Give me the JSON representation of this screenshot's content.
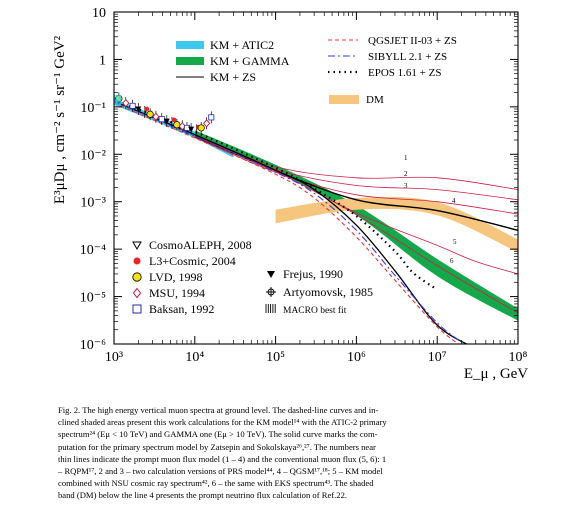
{
  "chart_data": {
    "type": "line",
    "title": "",
    "xlabel": "E_μ , GeV",
    "ylabel": "E³μDμ ,  cm⁻² s⁻¹ sr⁻¹ GeV²",
    "xscale": "log",
    "yscale": "log",
    "xlim": [
      1000,
      100000000
    ],
    "ylim": [
      1e-06,
      10
    ],
    "x_ticks": [
      "10³",
      "10⁴",
      "10⁵",
      "10⁶",
      "10⁷",
      "10⁸"
    ],
    "y_ticks": [
      "10",
      "1",
      "10⁻¹",
      "10⁻²",
      "10⁻³",
      "10⁻⁴",
      "10⁻⁵",
      "10⁻⁶"
    ],
    "legend_right": [
      "QGSJET II-03 + ZS",
      "SIBYLL 2.1 + ZS",
      "EPOS 1.61 + ZS",
      "DM"
    ],
    "legend_left": [
      "KM + ATIC2",
      "KM + GAMMA",
      "KM + ZS"
    ],
    "legend_data": [
      "CosmoALEPH, 2008",
      "L3+Cosmic, 2004",
      "LVD, 1998",
      "MSU, 1994",
      "Baksan, 1992",
      "Frejus, 1990",
      "Artyomovsk, 1985",
      "MACRO best fit"
    ],
    "line_labels": [
      "1",
      "2",
      "3",
      "4",
      "5",
      "6"
    ],
    "colors": {
      "atic_band": "#3ec8f0",
      "gamma_band": "#15a84a",
      "dm_band": "#f6c57e",
      "qgsjet": "#e03a3a",
      "sibyll": "#3a3ad8",
      "km_zs": "#000000",
      "prompt": "#cc1f4a"
    },
    "series": [
      {
        "name": "KM + ATIC2",
        "kind": "band",
        "x": [
          1000,
          3000,
          10000,
          30000
        ],
        "y_low": [
          0.11,
          0.052,
          0.022,
          0.0085
        ],
        "y_high": [
          0.15,
          0.07,
          0.03,
          0.0115
        ]
      },
      {
        "name": "KM + GAMMA",
        "kind": "band",
        "x": [
          10000,
          100000,
          1000000,
          10000000,
          100000000
        ],
        "y_low": [
          0.022,
          0.0044,
          0.00052,
          2.7e-05,
          3.1e-06
        ],
        "y_high": [
          0.032,
          0.006,
          0.00085,
          6.2e-05,
          5.6e-06
        ]
      },
      {
        "name": "KM + ZS",
        "kind": "line",
        "x": [
          1000,
          10000,
          100000,
          300000,
          1000000,
          3000000,
          10000000,
          30000000
        ],
        "y": [
          0.13,
          0.026,
          0.0046,
          0.0018,
          0.00032,
          3.5e-05,
          2.5e-06,
          8e-07
        ]
      },
      {
        "name": "QGSJET II-03 + ZS",
        "kind": "dashed",
        "x": [
          1000,
          10000,
          100000,
          300000,
          1000000,
          3000000,
          10000000,
          20000000
        ],
        "y": [
          0.12,
          0.022,
          0.0038,
          0.0012,
          0.00018,
          2.2e-05,
          2.3e-06,
          9e-07
        ]
      },
      {
        "name": "SIBYLL 2.1 + ZS",
        "kind": "dashdot",
        "x": [
          1000,
          10000,
          100000,
          300000,
          1000000,
          3000000,
          10000000,
          20000000
        ],
        "y": [
          0.13,
          0.024,
          0.0042,
          0.0015,
          0.00025,
          2.8e-05,
          2.8e-06,
          1.1e-06
        ]
      },
      {
        "name": "EPOS 1.61 + ZS",
        "kind": "dotted",
        "x": [
          1000,
          10000,
          100000,
          300000,
          1000000,
          3000000,
          5000000,
          10000000
        ],
        "y": [
          0.14,
          0.03,
          0.0052,
          0.0019,
          0.0005,
          9e-05,
          3.2e-05,
          1.4e-05
        ]
      },
      {
        "name": "DM",
        "kind": "band",
        "x": [
          100000,
          1000000,
          10000000,
          100000000
        ],
        "y_low": [
          0.00035,
          0.00068,
          0.00052,
          8.5e-05
        ],
        "y_high": [
          0.00068,
          0.0012,
          0.00098,
          0.00016
        ]
      },
      {
        "name": "1",
        "kind": "thin",
        "x": [
          10000,
          100000,
          1000000,
          10000000,
          100000000
        ],
        "y": [
          0.025,
          0.0055,
          0.0032,
          0.0032,
          0.0018
        ]
      },
      {
        "name": "2",
        "kind": "thin",
        "x": [
          10000,
          100000,
          1000000,
          10000000,
          100000000
        ],
        "y": [
          0.024,
          0.0048,
          0.0022,
          0.0018,
          0.0011
        ]
      },
      {
        "name": "3",
        "kind": "thin",
        "x": [
          10000,
          100000,
          1000000,
          10000000,
          100000000
        ],
        "y": [
          0.023,
          0.0042,
          0.0014,
          0.001,
          0.00055
        ]
      },
      {
        "name": "4",
        "kind": "thick",
        "x": [
          10000,
          100000,
          1000000,
          10000000,
          100000000
        ],
        "y": [
          0.024,
          0.0045,
          0.0011,
          0.00065,
          0.00025
        ]
      },
      {
        "name": "5",
        "kind": "thin",
        "x": [
          10000,
          100000,
          1000000,
          10000000,
          30000000,
          100000000
        ],
        "y": [
          0.024,
          0.0044,
          0.00058,
          0.00012,
          5.5e-05,
          3e-05
        ]
      },
      {
        "name": "6",
        "kind": "thin",
        "x": [
          10000,
          100000,
          1000000,
          10000000,
          100000000
        ],
        "y": [
          0.024,
          0.0044,
          0.00053,
          4.5e-05,
          4.5e-06
        ]
      }
    ],
    "data_points": [
      [
        1150,
        0.15
      ],
      [
        1400,
        0.12
      ],
      [
        1700,
        0.105
      ],
      [
        2000,
        0.09
      ],
      [
        2400,
        0.078
      ],
      [
        2800,
        0.07
      ],
      [
        3300,
        0.062
      ],
      [
        3900,
        0.055
      ],
      [
        4500,
        0.05
      ],
      [
        5200,
        0.046
      ],
      [
        6000,
        0.042
      ],
      [
        7000,
        0.039
      ],
      [
        8000,
        0.036
      ],
      [
        9000,
        0.034
      ],
      [
        10500,
        0.032
      ],
      [
        12000,
        0.036
      ],
      [
        14000,
        0.045
      ],
      [
        16000,
        0.06
      ]
    ]
  },
  "caption": {
    "lines": [
      "Fig. 2.   The high energy vertical muon spectra at ground level. The dashed-line curves and in-",
      "clined shaded areas present this work calculations for the KM model¹⁴ with the ATIC-2 primary",
      "spectrum²⁴ (Eμ < 10 TeV) and GAMMA one (Eμ > 10 TeV). The solid curve marks the com-",
      "putation for the primary spectrum model by Zatsepin and Sokolskaya²⁶,²⁷. The numbers near",
      "thin lines indicate the prompt muon flux model (1 – 4) and the conventional muon flux (5, 6): 1",
      "– RQPM¹⁷, 2 and 3 – two calculation versions of PRS model⁴⁴, 4 – QGSM¹⁷,¹⁸; 5 – KM model",
      "combined with NSU cosmic ray spectrum⁴², 6 – the same with EKS spectrum⁴³. The shaded",
      "band (DM) below the line 4 presents the prompt neutrino flux calculation of Ref.22."
    ]
  }
}
